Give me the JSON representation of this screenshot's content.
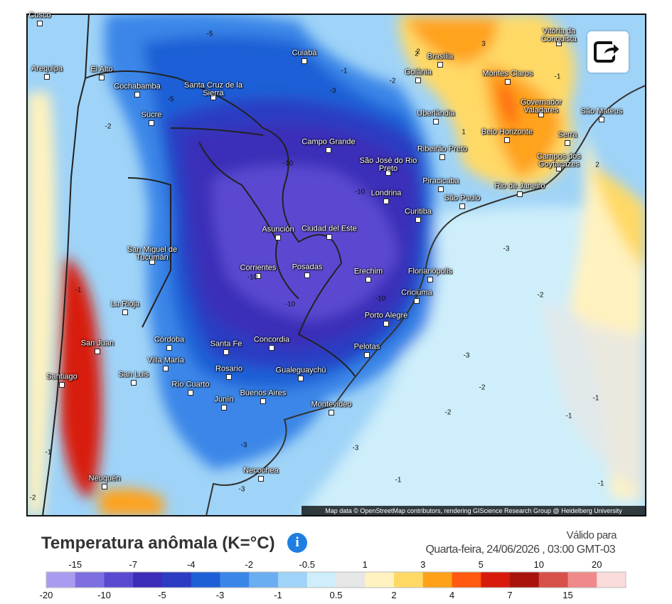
{
  "map": {
    "cities": [
      "Cusco",
      "Arequipa",
      "El Alto",
      "Cochabamba",
      "Santa Cruz de la Sierra",
      "Sucre",
      "Cuiabá",
      "Brasília",
      "Vitória da Conquista",
      "Goiânia",
      "Montes Claros",
      "Uberlândia",
      "Governador Valadares",
      "São Mateus",
      "Belo Horizonte",
      "Serra",
      "Campo Grande",
      "Ribeirão Preto",
      "São José do Rio Preto",
      "Campos dos Goytacazes",
      "Piracicaba",
      "Rio de Janeiro",
      "São Paulo",
      "Londrina",
      "Curitiba",
      "Asunción",
      "Ciudad del Este",
      "San Miguel de Tucumán",
      "Corrientes",
      "Posadas",
      "Erechim",
      "Florianópolis",
      "Criciúma",
      "La Rioja",
      "Porto Alegre",
      "San Juan",
      "Córdoba",
      "Santa Fe",
      "Concordia",
      "Pelotas",
      "Villa María",
      "Rosario",
      "Gualeguaychú",
      "San Luis",
      "Santiago",
      "Río Cuarto",
      "Buenos Aires",
      "Junín",
      "Montevideo",
      "Necochea",
      "Neuquén"
    ],
    "contour_labels": [
      -5,
      -5,
      -3,
      -1,
      -2,
      2,
      3,
      -1,
      -2,
      1,
      -10,
      -10,
      -10,
      -10,
      -10,
      -3,
      -3,
      -2,
      -2,
      -3,
      -1,
      -2,
      -1,
      -3,
      -3,
      -1,
      -1,
      2,
      -2,
      -1,
      -1,
      2
    ],
    "attribution": "Map data © OpenStreetMap contributors, rendering GIScience Research Group @ Heidelberg University"
  },
  "legend": {
    "title": "Temperatura anômala (K=°C)",
    "valid_label": "Válido para",
    "valid_time": "Quarta-feira, 24/06/2026 , 03:00 GMT-03",
    "ticks": [
      -20,
      -15,
      -10,
      -7,
      -5,
      -4,
      -3,
      -2,
      -1,
      -0.5,
      0.5,
      1,
      2,
      3,
      4,
      5,
      7,
      10,
      15,
      20
    ],
    "colors": [
      "#a99cf0",
      "#7d6fe0",
      "#5a4ad0",
      "#3b2db8",
      "#2b3cc2",
      "#1f5fd6",
      "#3a86e8",
      "#6aaef2",
      "#9fd3f7",
      "#cdeefa",
      "#e6e6e6",
      "#fff2bf",
      "#ffd966",
      "#ffa21a",
      "#ff5a10",
      "#d81a0a",
      "#a8140c",
      "#d8504a",
      "#f08a8a",
      "#fbdcdc"
    ]
  }
}
